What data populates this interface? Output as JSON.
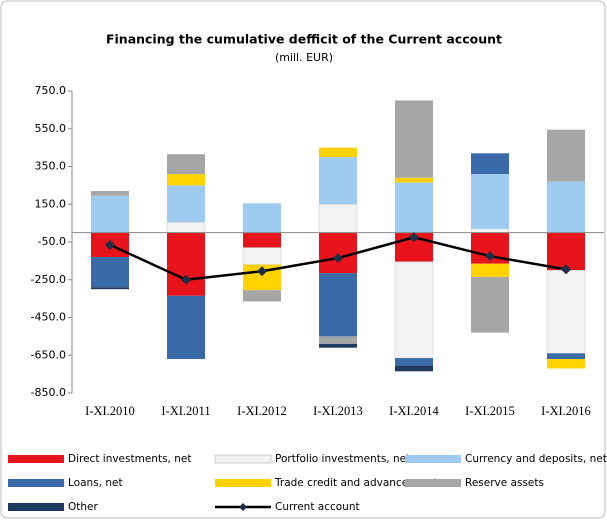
{
  "chart_data": {
    "type": "stacked_bar_line",
    "title": "Financing  the cumulative  defficit of the Current account",
    "subtitle": "(mill. EUR)",
    "categories": [
      "I-XI.2010",
      "I-XI.2011",
      "I-XI.2012",
      "I-XI.2013",
      "I-XI.2014",
      "I-XI.2015",
      "I-XI.2016"
    ],
    "series": [
      {
        "name": "Direct investments, net",
        "color": "#e8141b",
        "values": [
          -130,
          -335,
          -80,
          -215,
          -155,
          -165,
          -200
        ]
      },
      {
        "name": "Portfolio investments, net",
        "color": "#f2f2f2",
        "values": [
          0,
          55,
          -90,
          150,
          -510,
          20,
          -440
        ]
      },
      {
        "name": "Currency and deposits, net",
        "color": "#9fcbf0",
        "values": [
          195,
          195,
          155,
          250,
          265,
          290,
          270
        ]
      },
      {
        "name": "Loans, net",
        "color": "#3a6aa8",
        "values": [
          -160,
          -335,
          0,
          -335,
          -40,
          110,
          -30
        ]
      },
      {
        "name": "Trade credit and advances, net",
        "color": "#ffd200",
        "values": [
          0,
          60,
          -135,
          50,
          25,
          -70,
          -50
        ]
      },
      {
        "name": "Reserve assets",
        "color": "#a6a6a6",
        "values": [
          25,
          105,
          -60,
          -40,
          410,
          -295,
          275
        ]
      },
      {
        "name": "Other",
        "color": "#1f3a5f",
        "values": [
          -10,
          0,
          0,
          -20,
          -30,
          0,
          0
        ]
      },
      {
        "name": "Current account",
        "color": "#000000",
        "line": true,
        "values": [
          -65,
          -250,
          -205,
          -135,
          -25,
          -125,
          -195
        ]
      }
    ],
    "ylim": [
      -850,
      750
    ],
    "yticks": [
      {
        "value": 750,
        "label": "750.0"
      },
      {
        "value": 550,
        "label": "550.0"
      },
      {
        "value": 350,
        "label": "350.0"
      },
      {
        "value": 150,
        "label": "150.0"
      },
      {
        "value": -50,
        "label": "-50.0"
      },
      {
        "value": -250,
        "label": "-250.0"
      },
      {
        "value": -450,
        "label": "-450.0"
      },
      {
        "value": -650,
        "label": "-650.0"
      },
      {
        "value": -850,
        "label": "-850.0"
      }
    ],
    "grid": false
  }
}
